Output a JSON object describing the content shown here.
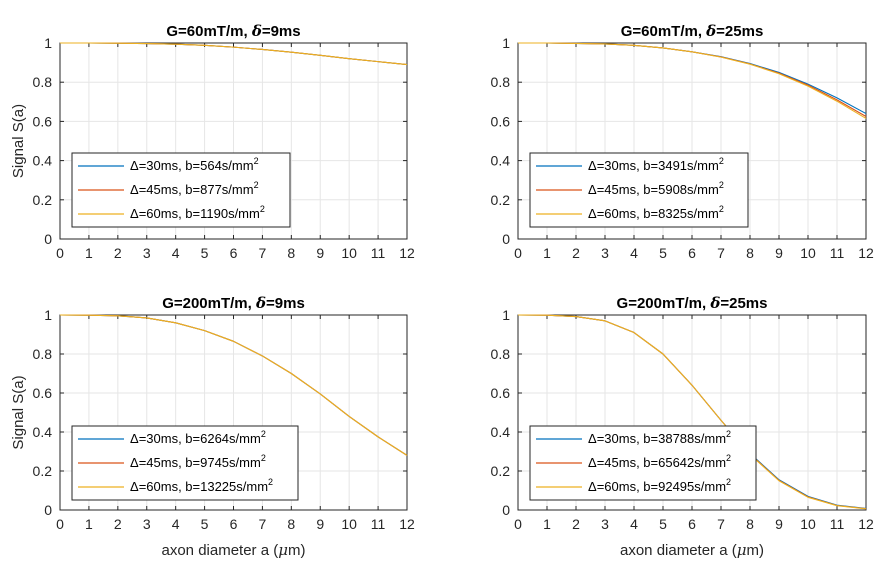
{
  "chart_data": [
    {
      "type": "line",
      "title": "G=60mT/m, δ=9ms",
      "title_parts": {
        "pre": "G=60mT/m, ",
        "sym": "δ",
        "post": "=9ms"
      },
      "xlabel": "",
      "ylabel": "Signal S(a)",
      "xlim": [
        0,
        12
      ],
      "ylim": [
        0,
        1
      ],
      "xticks": [
        "0",
        "1",
        "2",
        "3",
        "4",
        "5",
        "6",
        "7",
        "8",
        "9",
        "10",
        "11",
        "12"
      ],
      "yticks": [
        "0",
        "0.2",
        "0.4",
        "0.6",
        "0.8",
        "1"
      ],
      "grid": true,
      "legend_position": "bottom-left",
      "x": [
        0,
        1,
        2,
        3,
        4,
        5,
        6,
        7,
        8,
        9,
        10,
        11,
        12
      ],
      "series": [
        {
          "name": "Δ=30ms, b=564s/mm2",
          "name_parts": {
            "delta": "Δ",
            "text": "=30ms, b=564s/mm",
            "sup": "2"
          },
          "color": "#0072BD",
          "values": [
            1.0,
            1.0,
            0.999,
            0.997,
            0.994,
            0.988,
            0.979,
            0.967,
            0.953,
            0.937,
            0.92,
            0.905,
            0.89
          ]
        },
        {
          "name": "Δ=45ms, b=877s/mm2",
          "name_parts": {
            "delta": "Δ",
            "text": "=45ms, b=877s/mm",
            "sup": "2"
          },
          "color": "#D95319",
          "values": [
            1.0,
            1.0,
            0.999,
            0.997,
            0.994,
            0.988,
            0.979,
            0.967,
            0.953,
            0.937,
            0.92,
            0.905,
            0.89
          ]
        },
        {
          "name": "Δ=60ms, b=1190s/mm2",
          "name_parts": {
            "delta": "Δ",
            "text": "=60ms, b=1190s/mm",
            "sup": "2"
          },
          "color": "#EDB120",
          "values": [
            1.0,
            1.0,
            0.999,
            0.997,
            0.994,
            0.988,
            0.979,
            0.967,
            0.953,
            0.937,
            0.92,
            0.905,
            0.89
          ]
        }
      ]
    },
    {
      "type": "line",
      "title": "G=60mT/m, δ=25ms",
      "title_parts": {
        "pre": "G=60mT/m, ",
        "sym": "δ",
        "post": "=25ms"
      },
      "xlabel": "",
      "ylabel": "",
      "xlim": [
        0,
        12
      ],
      "ylim": [
        0,
        1
      ],
      "xticks": [
        "0",
        "1",
        "2",
        "3",
        "4",
        "5",
        "6",
        "7",
        "8",
        "9",
        "10",
        "11",
        "12"
      ],
      "yticks": [
        "0",
        "0.2",
        "0.4",
        "0.6",
        "0.8",
        "1"
      ],
      "grid": true,
      "legend_position": "bottom-left",
      "x": [
        0,
        1,
        2,
        3,
        4,
        5,
        6,
        7,
        8,
        9,
        10,
        11,
        12
      ],
      "series": [
        {
          "name": "Δ=30ms, b=3491s/mm2",
          "name_parts": {
            "delta": "Δ",
            "text": "=30ms, b=3491s/mm",
            "sup": "2"
          },
          "color": "#0072BD",
          "values": [
            1.0,
            1.0,
            0.998,
            0.995,
            0.988,
            0.975,
            0.955,
            0.93,
            0.895,
            0.85,
            0.79,
            0.72,
            0.64
          ]
        },
        {
          "name": "Δ=45ms, b=5908s/mm2",
          "name_parts": {
            "delta": "Δ",
            "text": "=45ms, b=5908s/mm",
            "sup": "2"
          },
          "color": "#D95319",
          "values": [
            1.0,
            1.0,
            0.998,
            0.995,
            0.988,
            0.975,
            0.955,
            0.929,
            0.893,
            0.846,
            0.785,
            0.71,
            0.625
          ]
        },
        {
          "name": "Δ=60ms, b=8325s/mm2",
          "name_parts": {
            "delta": "Δ",
            "text": "=60ms, b=8325s/mm",
            "sup": "2"
          },
          "color": "#EDB120",
          "values": [
            1.0,
            1.0,
            0.998,
            0.995,
            0.988,
            0.975,
            0.955,
            0.928,
            0.892,
            0.843,
            0.78,
            0.703,
            0.615
          ]
        }
      ]
    },
    {
      "type": "line",
      "title": "G=200mT/m, δ=9ms",
      "title_parts": {
        "pre": "G=200mT/m, ",
        "sym": "δ",
        "post": "=9ms"
      },
      "xlabel": "axon diameter a (μm)",
      "xlabel_parts": {
        "pre": "axon diameter a (",
        "sym": "μ",
        "post": "m)"
      },
      "ylabel": "Signal S(a)",
      "xlim": [
        0,
        12
      ],
      "ylim": [
        0,
        1
      ],
      "xticks": [
        "0",
        "1",
        "2",
        "3",
        "4",
        "5",
        "6",
        "7",
        "8",
        "9",
        "10",
        "11",
        "12"
      ],
      "yticks": [
        "0",
        "0.2",
        "0.4",
        "0.6",
        "0.8",
        "1"
      ],
      "grid": true,
      "legend_position": "bottom-left",
      "x": [
        0,
        1,
        2,
        3,
        4,
        5,
        6,
        7,
        8,
        9,
        10,
        11,
        12
      ],
      "series": [
        {
          "name": "Δ=30ms, b=6264s/mm2",
          "name_parts": {
            "delta": "Δ",
            "text": "=30ms, b=6264s/mm",
            "sup": "2"
          },
          "color": "#0072BD",
          "values": [
            1.0,
            0.999,
            0.996,
            0.985,
            0.96,
            0.92,
            0.865,
            0.79,
            0.7,
            0.595,
            0.48,
            0.375,
            0.28
          ]
        },
        {
          "name": "Δ=45ms, b=9745s/mm2",
          "name_parts": {
            "delta": "Δ",
            "text": "=45ms, b=9745s/mm",
            "sup": "2"
          },
          "color": "#D95319",
          "values": [
            1.0,
            0.999,
            0.996,
            0.985,
            0.96,
            0.92,
            0.865,
            0.79,
            0.7,
            0.595,
            0.48,
            0.375,
            0.28
          ]
        },
        {
          "name": "Δ=60ms, b=13225s/mm2",
          "name_parts": {
            "delta": "Δ",
            "text": "=60ms, b=13225s/mm",
            "sup": "2"
          },
          "color": "#EDB120",
          "values": [
            1.0,
            0.999,
            0.996,
            0.985,
            0.96,
            0.92,
            0.865,
            0.79,
            0.7,
            0.595,
            0.48,
            0.375,
            0.28
          ]
        }
      ]
    },
    {
      "type": "line",
      "title": "G=200mT/m, δ=25ms",
      "title_parts": {
        "pre": "G=200mT/m, ",
        "sym": "δ",
        "post": "=25ms"
      },
      "xlabel": "axon diameter a (μm)",
      "xlabel_parts": {
        "pre": "axon diameter a (",
        "sym": "μ",
        "post": "m)"
      },
      "ylabel": "",
      "xlim": [
        0,
        12
      ],
      "ylim": [
        0,
        1
      ],
      "xticks": [
        "0",
        "1",
        "2",
        "3",
        "4",
        "5",
        "6",
        "7",
        "8",
        "9",
        "10",
        "11",
        "12"
      ],
      "yticks": [
        "0",
        "0.2",
        "0.4",
        "0.6",
        "0.8",
        "1"
      ],
      "grid": true,
      "legend_position": "bottom-left",
      "x": [
        0,
        1,
        2,
        3,
        4,
        5,
        6,
        7,
        8,
        9,
        10,
        11,
        12
      ],
      "series": [
        {
          "name": "Δ=30ms, b=38788s/mm2",
          "name_parts": {
            "delta": "Δ",
            "text": "=30ms, b=38788s/mm",
            "sup": "2"
          },
          "color": "#0072BD",
          "values": [
            1.0,
            0.999,
            0.992,
            0.97,
            0.91,
            0.8,
            0.64,
            0.46,
            0.29,
            0.155,
            0.07,
            0.025,
            0.008
          ]
        },
        {
          "name": "Δ=45ms, b=65642s/mm2",
          "name_parts": {
            "delta": "Δ",
            "text": "=45ms, b=65642s/mm",
            "sup": "2"
          },
          "color": "#D95319",
          "values": [
            1.0,
            0.999,
            0.992,
            0.97,
            0.91,
            0.8,
            0.64,
            0.46,
            0.287,
            0.152,
            0.067,
            0.023,
            0.007
          ]
        },
        {
          "name": "Δ=60ms, b=92495s/mm2",
          "name_parts": {
            "delta": "Δ",
            "text": "=60ms, b=92495s/mm",
            "sup": "2"
          },
          "color": "#EDB120",
          "values": [
            1.0,
            0.999,
            0.992,
            0.97,
            0.91,
            0.8,
            0.64,
            0.46,
            0.285,
            0.15,
            0.065,
            0.022,
            0.006
          ]
        }
      ]
    }
  ]
}
